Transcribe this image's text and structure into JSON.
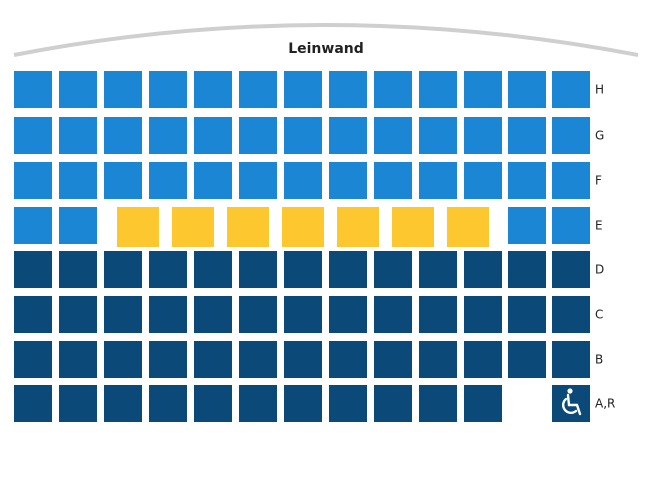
{
  "screen": {
    "label": "Leinwand"
  },
  "rows": [
    {
      "label": "H",
      "seats": [
        "#1a86d4",
        "#1a86d4",
        "#1a86d4",
        "#1a86d4",
        "#1a86d4",
        "#1a86d4",
        "#1a86d4",
        "#1a86d4",
        "#1a86d4",
        "#1a86d4",
        "#1a86d4",
        "#1a86d4",
        "#1a86d4"
      ]
    },
    {
      "label": "G",
      "seats": [
        "#1a86d4",
        "#1a86d4",
        "#1a86d4",
        "#1a86d4",
        "#1a86d4",
        "#1a86d4",
        "#1a86d4",
        "#1a86d4",
        "#1a86d4",
        "#1a86d4",
        "#1a86d4",
        "#1a86d4",
        "#1a86d4"
      ]
    },
    {
      "label": "F",
      "seats": [
        "#1a86d4",
        "#1a86d4",
        "#1a86d4",
        "#1a86d4",
        "#1a86d4",
        "#1a86d4",
        "#1a86d4",
        "#1a86d4",
        "#1a86d4",
        "#1a86d4",
        "#1a86d4",
        "#1a86d4",
        "#1a86d4"
      ]
    },
    {
      "label": "E",
      "seats": [
        "#1a86d4",
        "#1a86d4",
        "#fcc72f",
        "#fcc72f",
        "#fcc72f",
        "#fcc72f",
        "#fcc72f",
        "#fcc72f",
        "#fcc72f",
        "#1a86d4",
        "#1a86d4"
      ]
    },
    {
      "label": "D",
      "seats": [
        "#0b4a78",
        "#0b4a78",
        "#0b4a78",
        "#0b4a78",
        "#0b4a78",
        "#0b4a78",
        "#0b4a78",
        "#0b4a78",
        "#0b4a78",
        "#0b4a78",
        "#0b4a78",
        "#0b4a78",
        "#0b4a78"
      ]
    },
    {
      "label": "C",
      "seats": [
        "#0b4a78",
        "#0b4a78",
        "#0b4a78",
        "#0b4a78",
        "#0b4a78",
        "#0b4a78",
        "#0b4a78",
        "#0b4a78",
        "#0b4a78",
        "#0b4a78",
        "#0b4a78",
        "#0b4a78",
        "#0b4a78"
      ]
    },
    {
      "label": "B",
      "seats": [
        "#0b4a78",
        "#0b4a78",
        "#0b4a78",
        "#0b4a78",
        "#0b4a78",
        "#0b4a78",
        "#0b4a78",
        "#0b4a78",
        "#0b4a78",
        "#0b4a78",
        "#0b4a78",
        "#0b4a78",
        "#0b4a78"
      ]
    },
    {
      "label": "A,R",
      "seats": [
        "#0b4a78",
        "#0b4a78",
        "#0b4a78",
        "#0b4a78",
        "#0b4a78",
        "#0b4a78",
        "#0b4a78",
        "#0b4a78",
        "#0b4a78",
        "#0b4a78",
        "#0b4a78"
      ]
    }
  ]
}
